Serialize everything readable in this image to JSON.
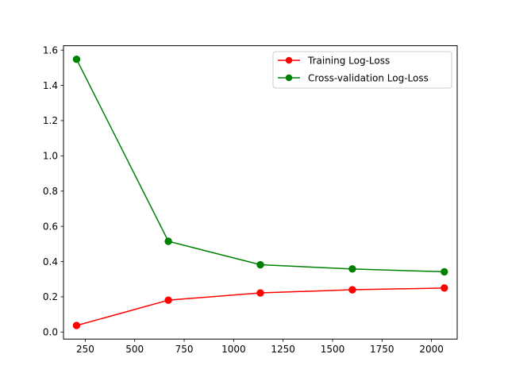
{
  "chart_data": {
    "type": "line",
    "title": "",
    "xlabel": "",
    "ylabel": "",
    "xlim": [
      140,
      2130
    ],
    "ylim": [
      -0.04,
      1.625
    ],
    "xticks": [
      250,
      500,
      750,
      1000,
      1250,
      1500,
      1750,
      2000
    ],
    "xtick_labels": [
      "250",
      "500",
      "750",
      "1000",
      "1250",
      "1500",
      "1750",
      "2000"
    ],
    "yticks": [
      0.0,
      0.2,
      0.4,
      0.6,
      0.8,
      1.0,
      1.2,
      1.4,
      1.6
    ],
    "ytick_labels": [
      "0.0",
      "0.2",
      "0.4",
      "0.6",
      "0.8",
      "1.0",
      "1.2",
      "1.4",
      "1.6"
    ],
    "grid": false,
    "legend_position": "top-right",
    "x": [
      206,
      670,
      1135,
      1600,
      2065
    ],
    "series": [
      {
        "name": "Training Log-Loss",
        "color": "#ff0000",
        "values": [
          0.037,
          0.181,
          0.222,
          0.24,
          0.25
        ]
      },
      {
        "name": "Cross-validation Log-Loss",
        "color": "#008000",
        "values": [
          1.548,
          0.515,
          0.382,
          0.358,
          0.342
        ]
      }
    ]
  }
}
